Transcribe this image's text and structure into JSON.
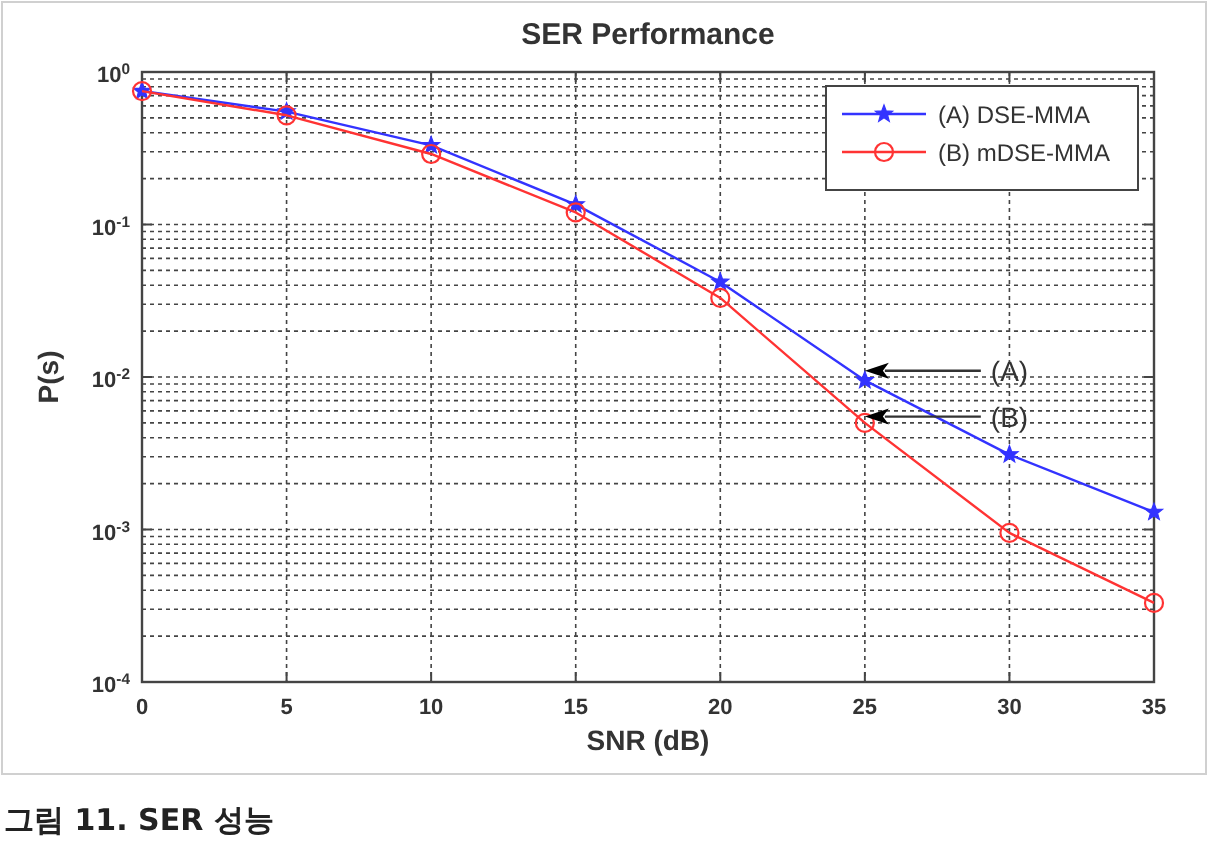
{
  "chart_data": {
    "type": "line",
    "title": "SER Performance",
    "xlabel": "SNR (dB)",
    "ylabel": "P(s)",
    "x": [
      0,
      5,
      10,
      15,
      20,
      25,
      30,
      35
    ],
    "series": [
      {
        "name": "(A) DSE-MMA",
        "color": "#3333ff",
        "marker": "star",
        "values": [
          0.75,
          0.55,
          0.33,
          0.135,
          0.042,
          0.0095,
          0.0031,
          0.0013
        ]
      },
      {
        "name": "(B) mDSE-MMA",
        "color": "#ff3333",
        "marker": "circle",
        "values": [
          0.75,
          0.52,
          0.29,
          0.12,
          0.033,
          0.005,
          0.00095,
          0.00033
        ]
      }
    ],
    "xlim": [
      0,
      35
    ],
    "xticks": [
      0,
      5,
      10,
      15,
      20,
      25,
      30,
      35
    ],
    "ylim": [
      0.0001,
      1
    ],
    "yticks": [
      {
        "value": 0.0001,
        "label": "10$^{-4}$"
      },
      {
        "value": 0.001,
        "label": "10$^{-3}$"
      },
      {
        "value": 0.01,
        "label": "10$^{-2}$"
      },
      {
        "value": 0.1,
        "label": "10$^{-1}$"
      },
      {
        "value": 1,
        "label": "10$^{0}$"
      }
    ],
    "log": "y",
    "grid": true,
    "legend": "top right",
    "line_style": "solid",
    "annotations": [
      "(A)",
      "(B)",
      "그림 11. SER 성능"
    ]
  }
}
